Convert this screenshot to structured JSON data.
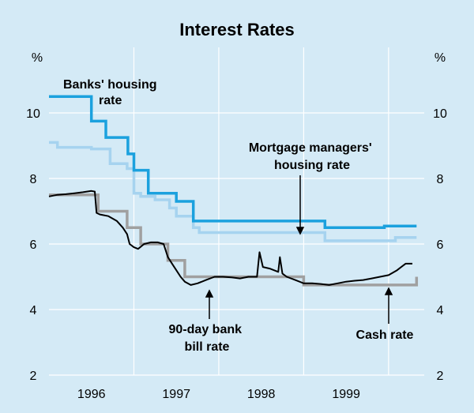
{
  "chart_data": {
    "type": "line",
    "title": "Interest Rates",
    "y_unit_left": "%",
    "y_unit_right": "%",
    "ylim": [
      2,
      12
    ],
    "yticks": [
      2,
      4,
      6,
      8,
      10
    ],
    "xlim": [
      1995.5,
      1999.92
    ],
    "xticks": [
      {
        "label": "1996",
        "at": 1996.0
      },
      {
        "label": "1997",
        "at": 1997.0
      },
      {
        "label": "1998",
        "at": 1998.0
      },
      {
        "label": "1999",
        "at": 1999.0
      }
    ],
    "year_boundaries": [
      1995.5,
      1996.5,
      1997.5,
      1998.5,
      1999.5
    ],
    "grid": true,
    "series": [
      {
        "name": "Mortgage managers' housing rate",
        "color": "#a6d3ef",
        "step": true,
        "points": [
          [
            1995.5,
            9.1
          ],
          [
            1995.6,
            8.95
          ],
          [
            1996.0,
            8.9
          ],
          [
            1996.22,
            8.45
          ],
          [
            1996.42,
            8.3
          ],
          [
            1996.5,
            7.55
          ],
          [
            1996.58,
            7.45
          ],
          [
            1996.75,
            7.35
          ],
          [
            1996.92,
            7.1
          ],
          [
            1997.0,
            6.85
          ],
          [
            1997.2,
            6.5
          ],
          [
            1997.27,
            6.35
          ],
          [
            1998.75,
            6.1
          ],
          [
            1999.58,
            6.2
          ],
          [
            1999.83,
            6.2
          ]
        ]
      },
      {
        "name": "Banks' housing rate",
        "color": "#1ba1de",
        "step": true,
        "points": [
          [
            1995.5,
            10.5
          ],
          [
            1996.0,
            9.75
          ],
          [
            1996.17,
            9.25
          ],
          [
            1996.43,
            8.75
          ],
          [
            1996.5,
            8.25
          ],
          [
            1996.67,
            7.55
          ],
          [
            1997.0,
            7.3
          ],
          [
            1997.2,
            6.7
          ],
          [
            1998.75,
            6.5
          ],
          [
            1999.45,
            6.55
          ],
          [
            1999.83,
            6.55
          ]
        ]
      },
      {
        "name": "Cash rate",
        "color": "#a0a0a0",
        "step": true,
        "points": [
          [
            1995.5,
            7.5
          ],
          [
            1996.08,
            7.0
          ],
          [
            1996.42,
            6.5
          ],
          [
            1996.58,
            6.0
          ],
          [
            1996.9,
            5.5
          ],
          [
            1997.1,
            5.0
          ],
          [
            1998.5,
            4.75
          ],
          [
            1999.83,
            5.0
          ]
        ]
      },
      {
        "name": "90-day bank bill rate",
        "color": "#000000",
        "step": false,
        "points": [
          [
            1995.5,
            7.45
          ],
          [
            1995.6,
            7.5
          ],
          [
            1995.7,
            7.52
          ],
          [
            1995.8,
            7.55
          ],
          [
            1995.9,
            7.58
          ],
          [
            1996.0,
            7.62
          ],
          [
            1996.04,
            7.6
          ],
          [
            1996.06,
            6.95
          ],
          [
            1996.1,
            6.9
          ],
          [
            1996.2,
            6.85
          ],
          [
            1996.3,
            6.7
          ],
          [
            1996.37,
            6.5
          ],
          [
            1996.42,
            6.3
          ],
          [
            1996.45,
            6.0
          ],
          [
            1996.5,
            5.9
          ],
          [
            1996.55,
            5.85
          ],
          [
            1996.62,
            6.0
          ],
          [
            1996.7,
            6.05
          ],
          [
            1996.78,
            6.05
          ],
          [
            1996.85,
            6.0
          ],
          [
            1996.9,
            5.6
          ],
          [
            1996.95,
            5.4
          ],
          [
            1997.0,
            5.2
          ],
          [
            1997.05,
            5.0
          ],
          [
            1997.1,
            4.85
          ],
          [
            1997.17,
            4.75
          ],
          [
            1997.25,
            4.8
          ],
          [
            1997.35,
            4.9
          ],
          [
            1997.45,
            5.0
          ],
          [
            1997.55,
            5.0
          ],
          [
            1997.65,
            4.98
          ],
          [
            1997.75,
            4.95
          ],
          [
            1997.85,
            5.0
          ],
          [
            1997.95,
            5.0
          ],
          [
            1997.98,
            5.75
          ],
          [
            1998.02,
            5.3
          ],
          [
            1998.1,
            5.25
          ],
          [
            1998.2,
            5.15
          ],
          [
            1998.22,
            5.6
          ],
          [
            1998.25,
            5.1
          ],
          [
            1998.3,
            5.0
          ],
          [
            1998.4,
            4.9
          ],
          [
            1998.5,
            4.8
          ],
          [
            1998.6,
            4.8
          ],
          [
            1998.7,
            4.78
          ],
          [
            1998.8,
            4.75
          ],
          [
            1998.9,
            4.8
          ],
          [
            1999.0,
            4.85
          ],
          [
            1999.1,
            4.88
          ],
          [
            1999.2,
            4.9
          ],
          [
            1999.3,
            4.95
          ],
          [
            1999.4,
            5.0
          ],
          [
            1999.5,
            5.05
          ],
          [
            1999.6,
            5.2
          ],
          [
            1999.7,
            5.4
          ],
          [
            1999.78,
            5.4
          ]
        ]
      }
    ],
    "annotations": [
      {
        "lines": [
          "Banks' housing",
          "rate"
        ]
      },
      {
        "lines": [
          "Mortgage managers'",
          "housing rate"
        ]
      },
      {
        "lines": [
          "90-day bank",
          "bill rate"
        ]
      },
      {
        "lines": [
          "Cash rate"
        ]
      }
    ]
  }
}
